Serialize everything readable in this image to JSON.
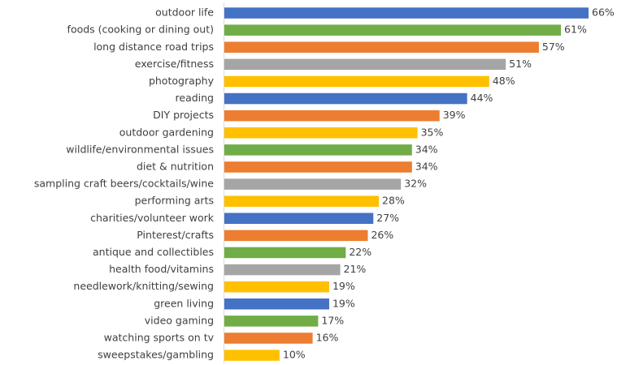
{
  "chart_data": {
    "type": "bar",
    "orientation": "horizontal",
    "categories": [
      "outdoor life",
      "foods (cooking or dining out)",
      "long distance road trips",
      "exercise/fitness",
      "photography",
      "reading",
      "DIY projects",
      "outdoor gardening",
      "wildlife/environmental issues",
      "diet & nutrition",
      "sampling craft beers/cocktails/wine",
      "performing arts",
      "charities/volunteer work",
      "Pinterest/crafts",
      "antique and collectibles",
      "health food/vitamins",
      "needlework/knitting/sewing",
      "green living",
      "video gaming",
      "watching sports on tv",
      "sweepstakes/gambling"
    ],
    "values": [
      66,
      61,
      57,
      51,
      48,
      44,
      39,
      35,
      34,
      34,
      32,
      28,
      27,
      26,
      22,
      21,
      19,
      19,
      17,
      16,
      10
    ],
    "value_labels": [
      "66%",
      "61%",
      "57%",
      "51%",
      "48%",
      "44%",
      "39%",
      "35%",
      "34%",
      "34%",
      "32%",
      "28%",
      "27%",
      "26%",
      "22%",
      "21%",
      "19%",
      "19%",
      "17%",
      "16%",
      "10%"
    ],
    "colors": [
      "#4472c4",
      "#70ad47",
      "#ed7d31",
      "#a5a5a5",
      "#ffc000",
      "#4472c4",
      "#ed7d31",
      "#ffc000",
      "#70ad47",
      "#ed7d31",
      "#a5a5a5",
      "#ffc000",
      "#4472c4",
      "#ed7d31",
      "#70ad47",
      "#a5a5a5",
      "#ffc000",
      "#4472c4",
      "#70ad47",
      "#ed7d31",
      "#ffc000"
    ]
  }
}
